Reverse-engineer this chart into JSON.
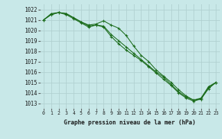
{
  "background_color": "#c8e8e8",
  "grid_color": "#b0d0d0",
  "line_color": "#1a6b1a",
  "marker_color": "#1a6b1a",
  "xlabel": "Graphe pression niveau de la mer (hPa)",
  "xlabel_fontsize": 6.0,
  "ytick_fontsize": 5.5,
  "xtick_fontsize": 4.8,
  "ylim": [
    1012.5,
    1022.5
  ],
  "xlim": [
    -0.5,
    23.5
  ],
  "yticks": [
    1013,
    1014,
    1015,
    1016,
    1017,
    1018,
    1019,
    1020,
    1021,
    1022
  ],
  "xticks": [
    0,
    1,
    2,
    3,
    4,
    5,
    6,
    7,
    8,
    9,
    10,
    11,
    12,
    13,
    14,
    15,
    16,
    17,
    18,
    19,
    20,
    21,
    22,
    23
  ],
  "series1": [
    1021.0,
    1021.5,
    1021.7,
    1021.6,
    1021.2,
    1020.8,
    1020.4,
    1020.5,
    1020.4,
    1019.6,
    1019.0,
    1018.4,
    1017.8,
    1017.2,
    1016.6,
    1016.0,
    1015.5,
    1014.8,
    1014.1,
    1013.6,
    1013.3,
    1013.4,
    1014.5,
    1015.0
  ],
  "series2": [
    1021.0,
    1021.6,
    1021.7,
    1021.6,
    1021.2,
    1020.8,
    1020.5,
    1020.6,
    1020.9,
    1020.5,
    1020.2,
    1019.5,
    1018.5,
    1017.6,
    1017.0,
    1016.2,
    1015.6,
    1015.0,
    1014.3,
    1013.7,
    1013.3,
    1013.5,
    1014.6,
    1015.0
  ],
  "series3": [
    1021.0,
    1021.5,
    1021.7,
    1021.5,
    1021.1,
    1020.7,
    1020.3,
    1020.5,
    1020.3,
    1019.4,
    1018.7,
    1018.1,
    1017.6,
    1017.1,
    1016.5,
    1015.9,
    1015.3,
    1014.7,
    1014.0,
    1013.5,
    1013.2,
    1013.4,
    1014.4,
    1015.0
  ]
}
